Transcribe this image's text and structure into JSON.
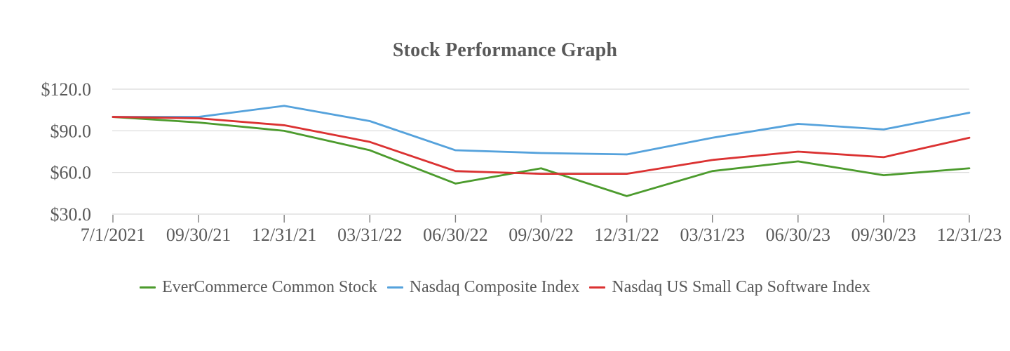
{
  "chart_data": {
    "type": "line",
    "title": "Stock Performance Graph",
    "x_labels": [
      "7/1/2021",
      "09/30/21",
      "12/31/21",
      "03/31/22",
      "06/30/22",
      "09/30/22",
      "12/31/22",
      "03/31/23",
      "06/30/23",
      "09/30/23",
      "12/31/23"
    ],
    "y_ticks": [
      30,
      60,
      90,
      120
    ],
    "y_tick_labels": [
      "$30.0",
      "$60.0",
      "$90.0",
      "$120.0"
    ],
    "ylim": [
      30,
      120
    ],
    "grid": "horizontal",
    "legend_position": "bottom",
    "series": [
      {
        "name": "EverCommerce Common Stock",
        "color": "#4C9B2D",
        "values": [
          100,
          96,
          90,
          76,
          52,
          63,
          43,
          61,
          68,
          58,
          63
        ]
      },
      {
        "name": "Nasdaq Composite Index",
        "color": "#55A2DC",
        "values": [
          100,
          100,
          108,
          97,
          76,
          74,
          73,
          85,
          95,
          91,
          103
        ]
      },
      {
        "name": "Nasdaq US Small Cap Software Index",
        "color": "#DB3232",
        "values": [
          100,
          99,
          94,
          82,
          61,
          59,
          59,
          69,
          75,
          71,
          85
        ]
      }
    ],
    "text_color": "#595959",
    "grid_color": "#D9D9D9",
    "tick_color": "#7F7F7F"
  }
}
